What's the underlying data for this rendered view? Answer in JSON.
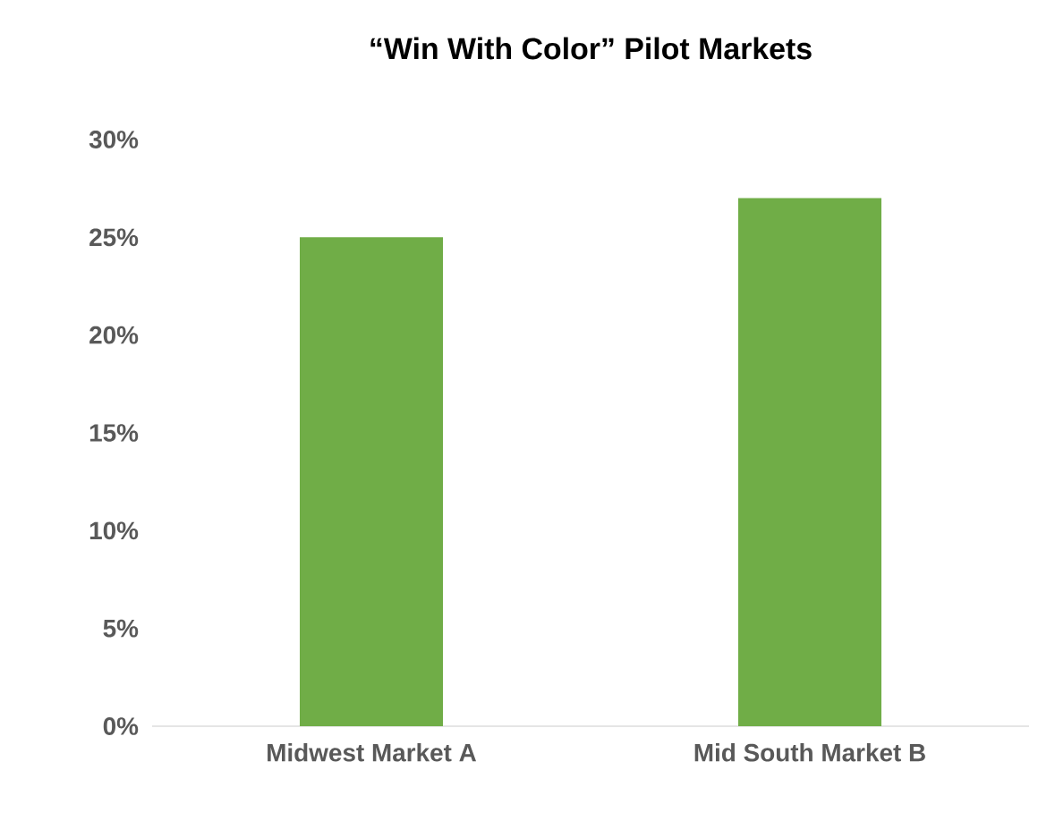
{
  "chart_data": {
    "type": "bar",
    "title": "“Win With Color” Pilot Markets",
    "categories": [
      "Midwest Market A",
      "Mid South Market B"
    ],
    "values": [
      25,
      27
    ],
    "color": "#70ad47",
    "ylim": [
      0,
      30
    ],
    "yticks": [
      {
        "value": 0,
        "label": "0%"
      },
      {
        "value": 5,
        "label": "5%"
      },
      {
        "value": 10,
        "label": "10%"
      },
      {
        "value": 15,
        "label": "15%"
      },
      {
        "value": 20,
        "label": "20%"
      },
      {
        "value": 25,
        "label": "25%"
      },
      {
        "value": 30,
        "label": "30%"
      }
    ]
  }
}
